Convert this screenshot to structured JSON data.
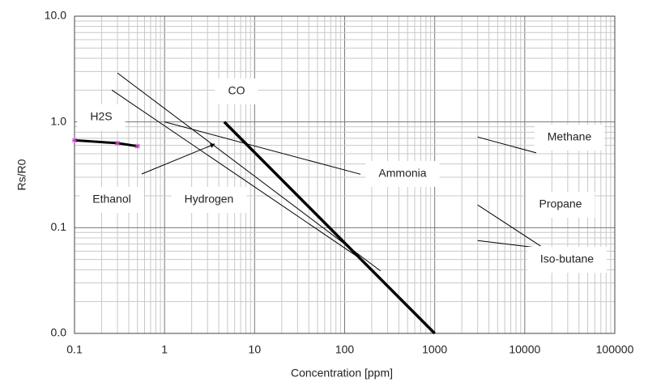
{
  "chart_data": {
    "type": "line",
    "x_label": "Concentration [ppm]",
    "y_label": "Rs/R0",
    "xlog": true,
    "ylog": true,
    "grid": true,
    "xlim": [
      0.1,
      100000
    ],
    "xticks": [
      0.1,
      1,
      10,
      100,
      1000,
      10000,
      100000
    ],
    "ylim": [
      0.01,
      10
    ],
    "yticks": [
      {
        "value": 0.01,
        "label": "0.0"
      },
      {
        "value": 0.1,
        "label": "0.1"
      },
      {
        "value": 1,
        "label": "1.0"
      },
      {
        "value": 10,
        "label": "10.0"
      }
    ],
    "series": [
      {
        "name": "H2S",
        "color": "#000000",
        "line_width": 3,
        "marker": "*",
        "marker_color": "#c040c0",
        "x": [
          0.1,
          0.3,
          0.5
        ],
        "values": [
          0.67,
          0.63,
          0.59
        ]
      },
      {
        "name": "CO",
        "color": "#000000",
        "line_width": 3.5,
        "x": [
          4.6,
          1000
        ],
        "values": [
          1.0,
          0.01
        ]
      },
      {
        "name": "Ammonia",
        "color": "#000000",
        "line_width": 1,
        "x": [
          1,
          150
        ],
        "values": [
          1.0,
          0.32
        ]
      },
      {
        "name": "Ethanol",
        "color": "#000000",
        "line_width": 1,
        "x": [
          0.3,
          250
        ],
        "values": [
          2.9,
          0.039
        ]
      },
      {
        "name": "Hydrogen",
        "color": "#000000",
        "line_width": 1,
        "x": [
          0.26,
          135
        ],
        "values": [
          2.0,
          0.054
        ]
      },
      {
        "name": "Methane",
        "color": "#000000",
        "line_width": 1,
        "x": [
          3000,
          13400
        ],
        "values": [
          0.72,
          0.51
        ]
      },
      {
        "name": "Propane",
        "color": "#000000",
        "line_width": 1,
        "x": [
          3000,
          15000
        ],
        "values": [
          0.164,
          0.067
        ]
      },
      {
        "name": "Iso-butane",
        "color": "#000000",
        "line_width": 1,
        "x": [
          3000,
          15000
        ],
        "values": [
          0.0755,
          0.064
        ]
      }
    ]
  }
}
